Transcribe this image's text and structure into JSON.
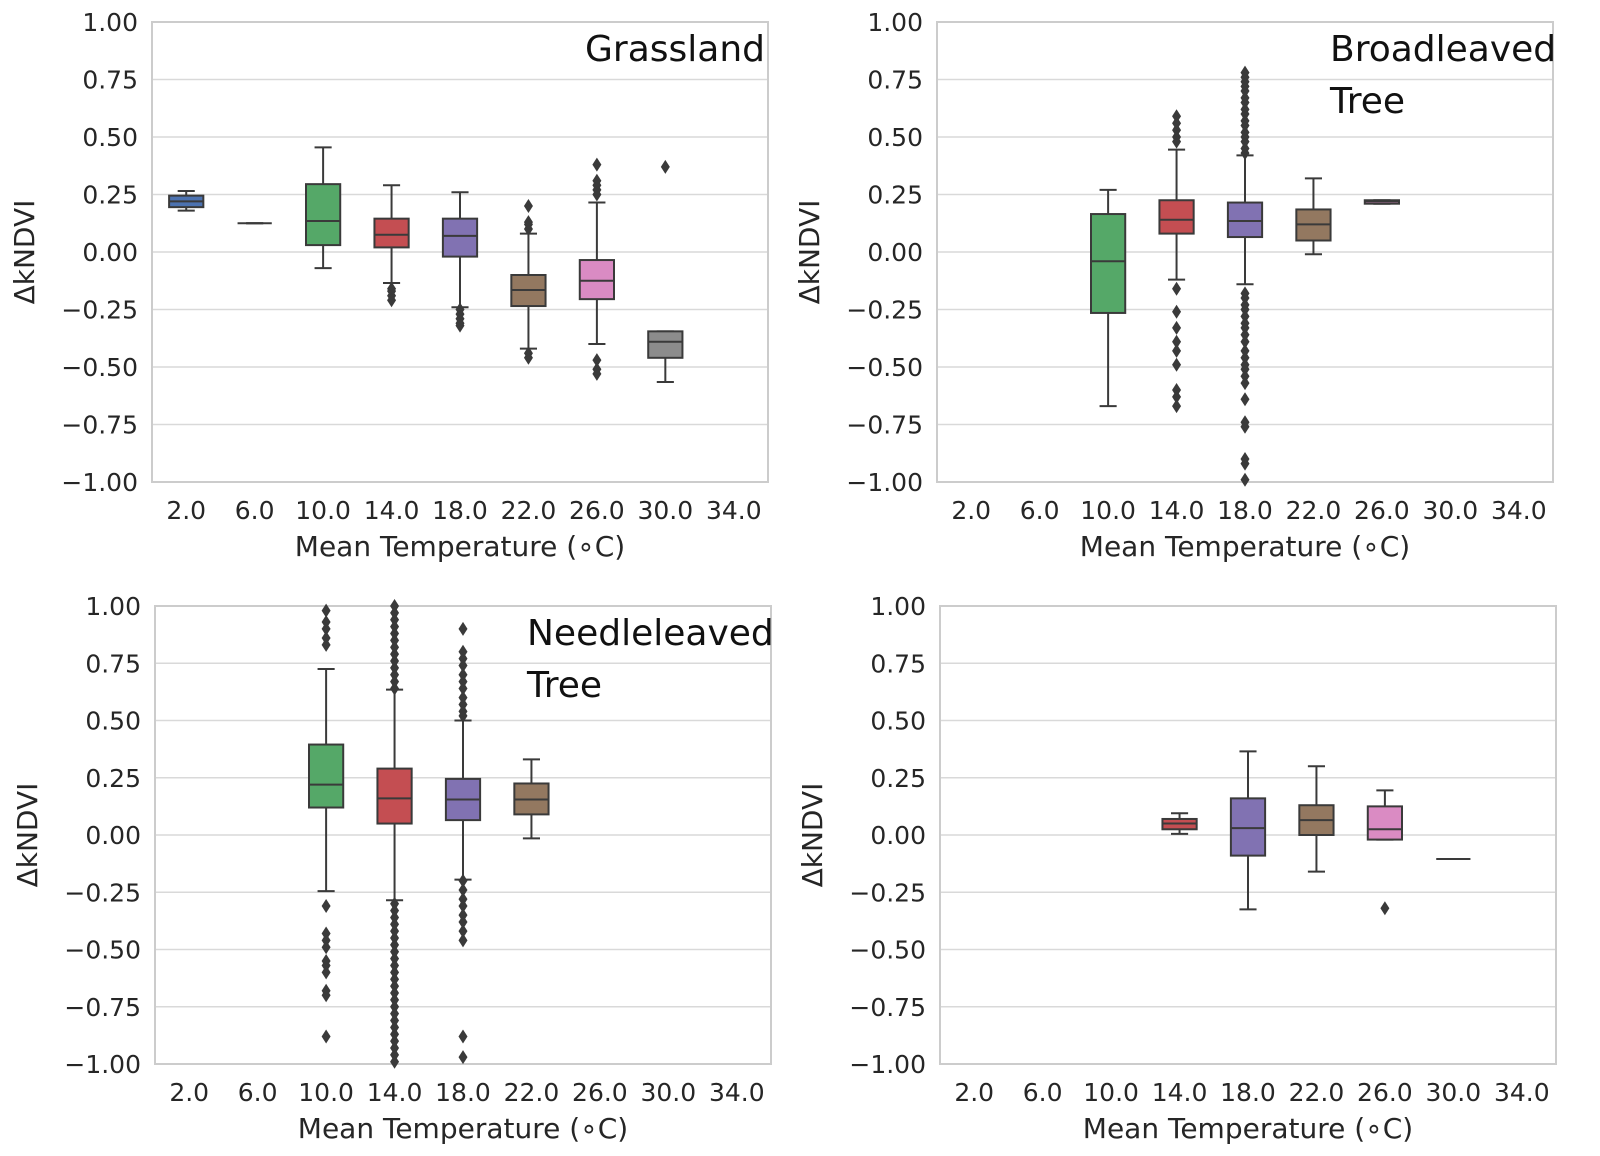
{
  "colors": [
    "#4c72b0",
    "#ffffff",
    "#55a868",
    "#c44e52",
    "#8172b2",
    "#937860",
    "#da8bc3",
    "#8c8c8c",
    "#ccb974"
  ],
  "chart_data": [
    {
      "type": "box",
      "label_lines": [
        "Grassland"
      ],
      "xlabel": "Mean Temperature (∘C)",
      "ylabel": "ΔkNDVI",
      "ylim": [
        -1.0,
        1.0
      ],
      "yticks": [
        "1.00",
        "0.75",
        "0.50",
        "0.25",
        "0.00",
        "−0.25",
        "−0.50",
        "−0.75",
        "−1.00"
      ],
      "categories": [
        "2.0",
        "6.0",
        "10.0",
        "14.0",
        "18.0",
        "22.0",
        "26.0",
        "30.0",
        "34.0"
      ],
      "boxes": [
        {
          "x": "2.0",
          "whislo": 0.18,
          "q1": 0.195,
          "med": 0.22,
          "q3": 0.245,
          "whishi": 0.265,
          "fliers": []
        },
        {
          "x": "6.0",
          "whislo": 0.125,
          "q1": 0.125,
          "med": 0.125,
          "q3": 0.125,
          "whishi": 0.125,
          "fliers": []
        },
        {
          "x": "10.0",
          "whislo": -0.07,
          "q1": 0.03,
          "med": 0.135,
          "q3": 0.295,
          "whishi": 0.455,
          "fliers": []
        },
        {
          "x": "14.0",
          "whislo": -0.135,
          "q1": 0.02,
          "med": 0.075,
          "q3": 0.145,
          "whishi": 0.29,
          "fliers": [
            -0.16,
            -0.17,
            -0.19,
            -0.21
          ]
        },
        {
          "x": "18.0",
          "whislo": -0.24,
          "q1": -0.02,
          "med": 0.07,
          "q3": 0.145,
          "whishi": 0.26,
          "fliers": [
            -0.25,
            -0.27,
            -0.29,
            -0.31,
            -0.32
          ]
        },
        {
          "x": "22.0",
          "whislo": -0.42,
          "q1": -0.235,
          "med": -0.165,
          "q3": -0.1,
          "whishi": 0.08,
          "fliers": [
            0.1,
            0.12,
            0.13,
            0.2,
            -0.44,
            -0.46
          ]
        },
        {
          "x": "26.0",
          "whislo": -0.4,
          "q1": -0.205,
          "med": -0.125,
          "q3": -0.035,
          "whishi": 0.215,
          "fliers": [
            0.25,
            0.27,
            0.29,
            0.31,
            0.38,
            -0.47,
            -0.51,
            -0.53
          ]
        },
        {
          "x": "30.0",
          "whislo": -0.565,
          "q1": -0.46,
          "med": -0.39,
          "q3": -0.345,
          "whishi": -0.345,
          "fliers": [
            0.37
          ]
        }
      ]
    },
    {
      "type": "box",
      "label_lines": [
        "Broadleaved",
        "Tree"
      ],
      "xlabel": "Mean Temperature (∘C)",
      "ylabel": "ΔkNDVI",
      "ylim": [
        -1.0,
        1.0
      ],
      "yticks": [
        "1.00",
        "0.75",
        "0.50",
        "0.25",
        "0.00",
        "−0.25",
        "−0.50",
        "−0.75",
        "−1.00"
      ],
      "categories": [
        "2.0",
        "6.0",
        "10.0",
        "14.0",
        "18.0",
        "22.0",
        "26.0",
        "30.0",
        "34.0"
      ],
      "boxes": [
        {
          "x": "10.0",
          "whislo": -0.67,
          "q1": -0.265,
          "med": -0.04,
          "q3": 0.165,
          "whishi": 0.27,
          "fliers": []
        },
        {
          "x": "14.0",
          "whislo": -0.12,
          "q1": 0.08,
          "med": 0.14,
          "q3": 0.225,
          "whishi": 0.445,
          "fliers": [
            0.48,
            0.5,
            0.53,
            0.56,
            0.59,
            -0.16,
            -0.26,
            -0.33,
            -0.39,
            -0.43,
            -0.49,
            -0.6,
            -0.63,
            -0.67
          ]
        },
        {
          "x": "18.0",
          "whislo": -0.14,
          "q1": 0.065,
          "med": 0.135,
          "q3": 0.215,
          "whishi": 0.42,
          "fliers": [
            0.43,
            0.45,
            0.48,
            0.5,
            0.52,
            0.55,
            0.57,
            0.6,
            0.62,
            0.65,
            0.67,
            0.7,
            0.72,
            0.74,
            0.76,
            0.78,
            -0.18,
            -0.2,
            -0.23,
            -0.25,
            -0.28,
            -0.31,
            -0.33,
            -0.36,
            -0.39,
            -0.43,
            -0.46,
            -0.49,
            -0.51,
            -0.54,
            -0.57,
            -0.64,
            -0.74,
            -0.76,
            -0.9,
            -0.92,
            -0.99
          ]
        },
        {
          "x": "22.0",
          "whislo": -0.01,
          "q1": 0.05,
          "med": 0.12,
          "q3": 0.185,
          "whishi": 0.32,
          "fliers": []
        },
        {
          "x": "26.0",
          "whislo": 0.21,
          "q1": 0.21,
          "med": 0.22,
          "q3": 0.225,
          "whishi": 0.225,
          "fliers": []
        }
      ]
    },
    {
      "type": "box",
      "label_lines": [
        "Needleleaved",
        "Tree"
      ],
      "xlabel": "Mean Temperature (∘C)",
      "ylabel": "ΔkNDVI",
      "ylim": [
        -1.0,
        1.0
      ],
      "yticks": [
        "1.00",
        "0.75",
        "0.50",
        "0.25",
        "0.00",
        "−0.25",
        "−0.50",
        "−0.75",
        "−1.00"
      ],
      "categories": [
        "2.0",
        "6.0",
        "10.0",
        "14.0",
        "18.0",
        "22.0",
        "26.0",
        "30.0",
        "34.0"
      ],
      "boxes": [
        {
          "x": "10.0",
          "whislo": -0.245,
          "q1": 0.12,
          "med": 0.22,
          "q3": 0.395,
          "whishi": 0.725,
          "fliers": [
            0.98,
            0.93,
            0.9,
            0.86,
            0.83,
            -0.31,
            -0.43,
            -0.46,
            -0.49,
            -0.55,
            -0.57,
            -0.6,
            -0.68,
            -0.7,
            -0.88
          ]
        },
        {
          "x": "14.0",
          "whislo": -0.285,
          "q1": 0.05,
          "med": 0.16,
          "q3": 0.29,
          "whishi": 0.635,
          "fliers": [
            1.0,
            0.97,
            0.94,
            0.91,
            0.88,
            0.85,
            0.82,
            0.79,
            0.76,
            0.73,
            0.7,
            0.67,
            0.64,
            -0.3,
            -0.33,
            -0.36,
            -0.39,
            -0.42,
            -0.45,
            -0.48,
            -0.51,
            -0.54,
            -0.57,
            -0.6,
            -0.63,
            -0.66,
            -0.69,
            -0.72,
            -0.75,
            -0.78,
            -0.81,
            -0.84,
            -0.87,
            -0.9,
            -0.93,
            -0.96,
            -0.99
          ]
        },
        {
          "x": "18.0",
          "whislo": -0.195,
          "q1": 0.065,
          "med": 0.155,
          "q3": 0.245,
          "whishi": 0.5,
          "fliers": [
            0.9,
            0.8,
            0.77,
            0.74,
            0.7,
            0.67,
            0.64,
            0.6,
            0.57,
            0.54,
            0.52,
            -0.2,
            -0.24,
            -0.28,
            -0.31,
            -0.35,
            -0.38,
            -0.42,
            -0.46,
            -0.88,
            -0.97
          ]
        },
        {
          "x": "22.0",
          "whislo": -0.015,
          "q1": 0.09,
          "med": 0.155,
          "q3": 0.225,
          "whishi": 0.33,
          "fliers": []
        }
      ]
    },
    {
      "type": "box",
      "label_lines": [],
      "xlabel": "Mean Temperature (∘C)",
      "ylabel": "ΔkNDVI",
      "ylim": [
        -1.0,
        1.0
      ],
      "yticks": [
        "1.00",
        "0.75",
        "0.50",
        "0.25",
        "0.00",
        "−0.25",
        "−0.50",
        "−0.75",
        "−1.00"
      ],
      "categories": [
        "2.0",
        "6.0",
        "10.0",
        "14.0",
        "18.0",
        "22.0",
        "26.0",
        "30.0",
        "34.0"
      ],
      "boxes": [
        {
          "x": "14.0",
          "whislo": 0.005,
          "q1": 0.025,
          "med": 0.05,
          "q3": 0.07,
          "whishi": 0.095,
          "fliers": []
        },
        {
          "x": "18.0",
          "whislo": -0.325,
          "q1": -0.09,
          "med": 0.03,
          "q3": 0.16,
          "whishi": 0.365,
          "fliers": []
        },
        {
          "x": "22.0",
          "whislo": -0.16,
          "q1": 0.0,
          "med": 0.065,
          "q3": 0.13,
          "whishi": 0.3,
          "fliers": []
        },
        {
          "x": "26.0",
          "whislo": -0.02,
          "q1": -0.02,
          "med": 0.025,
          "q3": 0.125,
          "whishi": 0.195,
          "fliers": [
            -0.32
          ]
        },
        {
          "x": "30.0",
          "whislo": -0.105,
          "q1": -0.105,
          "med": -0.105,
          "q3": -0.105,
          "whishi": -0.105,
          "fliers": []
        }
      ]
    }
  ]
}
